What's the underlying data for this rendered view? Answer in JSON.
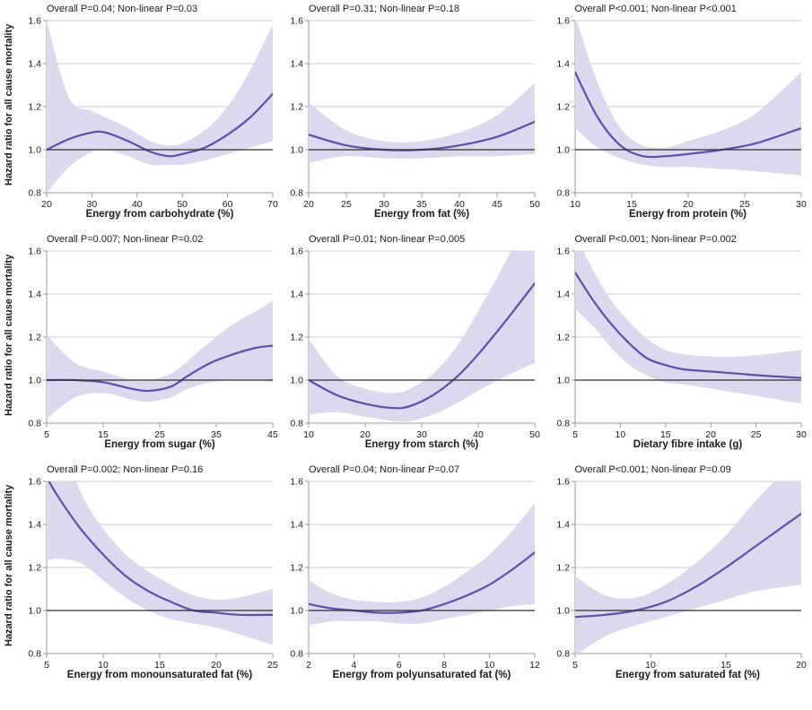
{
  "figure": {
    "ylabel": "Hazard ratio for all cause mortality",
    "y_ticks": [
      0.8,
      1.0,
      1.2,
      1.4,
      1.6
    ],
    "y_range": [
      0.8,
      1.6
    ],
    "ref_y": 1.0,
    "colors": {
      "curve": "#5b51a8",
      "band": "#dcd8ee",
      "grid": "#cccccc",
      "axis": "#999999",
      "ref_line": "#2e2e2e",
      "text": "#1a1a1a"
    }
  },
  "chart_data": [
    {
      "type": "line",
      "title": "Overall P=0.04; Non-linear P=0.03",
      "xlabel": "Energy from carbohydrate (%)",
      "ylabel": "Hazard ratio for all cause mortality",
      "x_range": [
        20,
        70
      ],
      "x_ticks": [
        20,
        30,
        40,
        50,
        60,
        70
      ],
      "ylim": [
        0.8,
        1.6
      ],
      "curve": {
        "x": [
          20,
          25,
          30,
          33,
          38,
          43,
          47,
          50,
          55,
          60,
          65,
          70
        ],
        "y": [
          1.0,
          1.05,
          1.08,
          1.08,
          1.04,
          0.99,
          0.97,
          0.98,
          1.01,
          1.07,
          1.15,
          1.26
        ]
      },
      "band": {
        "x": [
          20,
          25,
          30,
          33,
          38,
          43,
          47,
          50,
          55,
          60,
          65,
          70
        ],
        "lower": [
          0.8,
          0.92,
          0.99,
          1.0,
          0.97,
          0.93,
          0.93,
          0.93,
          0.95,
          0.98,
          1.01,
          1.04
        ],
        "upper": [
          1.6,
          1.24,
          1.18,
          1.15,
          1.1,
          1.04,
          1.02,
          1.03,
          1.09,
          1.2,
          1.37,
          1.58
        ]
      }
    },
    {
      "type": "line",
      "title": "Overall P=0.31; Non-linear P=0.18",
      "xlabel": "Energy from fat (%)",
      "ylabel": "Hazard ratio for all cause mortality",
      "x_range": [
        20,
        50
      ],
      "x_ticks": [
        20,
        25,
        30,
        35,
        40,
        45,
        50
      ],
      "ylim": [
        0.8,
        1.6
      ],
      "curve": {
        "x": [
          20,
          25,
          30,
          35,
          40,
          45,
          50
        ],
        "y": [
          1.07,
          1.02,
          1.0,
          1.0,
          1.02,
          1.06,
          1.13
        ]
      },
      "band": {
        "x": [
          20,
          25,
          30,
          35,
          40,
          45,
          50
        ],
        "lower": [
          0.94,
          0.97,
          0.96,
          0.96,
          0.97,
          0.97,
          0.98
        ],
        "upper": [
          1.22,
          1.09,
          1.04,
          1.04,
          1.08,
          1.16,
          1.31
        ]
      }
    },
    {
      "type": "line",
      "title": "Overall P<0.001; Non-linear P<0.001",
      "xlabel": "Energy from protein (%)",
      "ylabel": "Hazard ratio for all cause mortality",
      "x_range": [
        10,
        30
      ],
      "x_ticks": [
        10,
        15,
        20,
        25,
        30
      ],
      "ylim": [
        0.8,
        1.6
      ],
      "curve": {
        "x": [
          10,
          12,
          14,
          16,
          18,
          20,
          23,
          26,
          30
        ],
        "y": [
          1.36,
          1.15,
          1.02,
          0.97,
          0.97,
          0.98,
          1.0,
          1.03,
          1.1
        ]
      },
      "band": {
        "x": [
          10,
          12,
          14,
          16,
          18,
          20,
          23,
          26,
          30
        ],
        "lower": [
          1.1,
          1.01,
          0.96,
          0.93,
          0.92,
          0.92,
          0.91,
          0.9,
          0.88
        ],
        "upper": [
          1.62,
          1.31,
          1.1,
          1.02,
          1.01,
          1.04,
          1.09,
          1.17,
          1.36
        ]
      }
    },
    {
      "type": "line",
      "title": "Overall P=0.007; Non-linear P=0.02",
      "xlabel": "Energy from sugar (%)",
      "ylabel": "Hazard ratio for all cause mortality",
      "x_range": [
        5,
        45
      ],
      "x_ticks": [
        5,
        15,
        25,
        35,
        45
      ],
      "ylim": [
        0.8,
        1.6
      ],
      "curve": {
        "x": [
          5,
          10,
          15,
          20,
          23,
          27,
          30,
          34,
          38,
          42,
          45
        ],
        "y": [
          1.0,
          1.0,
          0.99,
          0.96,
          0.95,
          0.97,
          1.02,
          1.08,
          1.12,
          1.15,
          1.16
        ]
      },
      "band": {
        "x": [
          5,
          10,
          15,
          20,
          23,
          27,
          30,
          34,
          38,
          42,
          45
        ],
        "lower": [
          0.82,
          0.92,
          0.94,
          0.91,
          0.9,
          0.92,
          0.96,
          0.99,
          1.0,
          1.0,
          0.99
        ],
        "upper": [
          1.21,
          1.08,
          1.04,
          1.0,
          1.0,
          1.03,
          1.09,
          1.18,
          1.26,
          1.32,
          1.37
        ]
      }
    },
    {
      "type": "line",
      "title": "Overall P=0.01; Non-linear P=0.005",
      "xlabel": "Energy from starch (%)",
      "ylabel": "Hazard ratio for all cause mortality",
      "x_range": [
        10,
        50
      ],
      "x_ticks": [
        10,
        20,
        30,
        40,
        50
      ],
      "ylim": [
        0.8,
        1.6
      ],
      "curve": {
        "x": [
          10,
          15,
          20,
          25,
          28,
          32,
          36,
          40,
          45,
          50
        ],
        "y": [
          1.0,
          0.93,
          0.89,
          0.87,
          0.88,
          0.93,
          1.01,
          1.12,
          1.28,
          1.45
        ]
      },
      "band": {
        "x": [
          10,
          15,
          20,
          25,
          28,
          32,
          36,
          40,
          45,
          50
        ],
        "lower": [
          0.84,
          0.85,
          0.83,
          0.81,
          0.81,
          0.84,
          0.89,
          0.95,
          1.02,
          1.08
        ],
        "upper": [
          1.19,
          1.02,
          0.96,
          0.94,
          0.96,
          1.03,
          1.15,
          1.32,
          1.56,
          1.8
        ]
      }
    },
    {
      "type": "line",
      "title": "Overall P<0.001; Non-linear P=0.002",
      "xlabel": "Dietary fibre intake (g)",
      "ylabel": "Hazard ratio for all cause mortality",
      "x_range": [
        5,
        30
      ],
      "x_ticks": [
        5,
        10,
        15,
        20,
        25,
        30
      ],
      "ylim": [
        0.8,
        1.6
      ],
      "curve": {
        "x": [
          5,
          7,
          9,
          11,
          13,
          15,
          17,
          20,
          23,
          26,
          30
        ],
        "y": [
          1.5,
          1.37,
          1.26,
          1.17,
          1.1,
          1.07,
          1.05,
          1.04,
          1.03,
          1.02,
          1.01
        ]
      },
      "band": {
        "x": [
          5,
          7,
          9,
          11,
          13,
          15,
          17,
          20,
          23,
          26,
          30
        ],
        "lower": [
          1.33,
          1.25,
          1.15,
          1.07,
          1.02,
          0.99,
          0.98,
          0.96,
          0.94,
          0.92,
          0.89
        ],
        "upper": [
          1.68,
          1.51,
          1.37,
          1.27,
          1.19,
          1.14,
          1.12,
          1.11,
          1.11,
          1.12,
          1.14
        ]
      }
    },
    {
      "type": "line",
      "title": "Overall P=0.002; Non-linear P=0.16",
      "xlabel": "Energy from monounsaturated fat (%)",
      "ylabel": "Hazard ratio for all cause mortality",
      "x_range": [
        5,
        25
      ],
      "x_ticks": [
        5,
        10,
        15,
        20,
        25
      ],
      "ylim": [
        0.8,
        1.6
      ],
      "curve": {
        "x": [
          5,
          6,
          8,
          10,
          12,
          14,
          16,
          18,
          20,
          22,
          25
        ],
        "y": [
          1.62,
          1.53,
          1.38,
          1.26,
          1.16,
          1.09,
          1.04,
          1.0,
          0.99,
          0.98,
          0.98
        ]
      },
      "band": {
        "x": [
          5,
          6,
          8,
          10,
          12,
          14,
          16,
          18,
          20,
          22,
          25
        ],
        "lower": [
          1.23,
          1.24,
          1.22,
          1.14,
          1.06,
          1.0,
          0.96,
          0.94,
          0.92,
          0.89,
          0.84
        ],
        "upper": [
          2.0,
          1.85,
          1.55,
          1.38,
          1.26,
          1.18,
          1.12,
          1.07,
          1.05,
          1.06,
          1.1
        ]
      }
    },
    {
      "type": "line",
      "title": "Overall P=0.04; Non-linear P=0.07",
      "xlabel": "Energy from polyunsaturated fat (%)",
      "ylabel": "Hazard ratio for all cause mortality",
      "x_range": [
        2,
        12
      ],
      "x_ticks": [
        2,
        4,
        6,
        8,
        10,
        12
      ],
      "ylim": [
        0.8,
        1.6
      ],
      "curve": {
        "x": [
          2,
          3,
          4,
          5,
          6,
          7,
          8,
          9,
          10,
          11,
          12
        ],
        "y": [
          1.03,
          1.01,
          1.0,
          0.99,
          0.99,
          1.0,
          1.03,
          1.07,
          1.12,
          1.19,
          1.27
        ]
      },
      "band": {
        "x": [
          2,
          3,
          4,
          5,
          6,
          7,
          8,
          9,
          10,
          11,
          12
        ],
        "lower": [
          0.93,
          0.95,
          0.95,
          0.95,
          0.94,
          0.94,
          0.96,
          0.98,
          1.0,
          1.02,
          1.03
        ],
        "upper": [
          1.14,
          1.08,
          1.05,
          1.04,
          1.04,
          1.06,
          1.11,
          1.18,
          1.26,
          1.37,
          1.5
        ]
      }
    },
    {
      "type": "line",
      "title": "Overall P<0.001; Non-linear P=0.09",
      "xlabel": "Energy from saturated fat (%)",
      "ylabel": "Hazard ratio for all cause mortality",
      "x_range": [
        5,
        20
      ],
      "x_ticks": [
        5,
        10,
        15,
        20
      ],
      "ylim": [
        0.8,
        1.6
      ],
      "curve": {
        "x": [
          5,
          7,
          9,
          11,
          13,
          15,
          17,
          20
        ],
        "y": [
          0.97,
          0.98,
          1.0,
          1.04,
          1.11,
          1.2,
          1.3,
          1.45
        ]
      },
      "band": {
        "x": [
          5,
          7,
          9,
          11,
          13,
          15,
          17,
          20
        ],
        "lower": [
          0.79,
          0.88,
          0.93,
          0.97,
          1.01,
          1.05,
          1.09,
          1.12
        ],
        "upper": [
          1.16,
          1.07,
          1.06,
          1.12,
          1.22,
          1.35,
          1.51,
          1.73
        ]
      }
    }
  ]
}
